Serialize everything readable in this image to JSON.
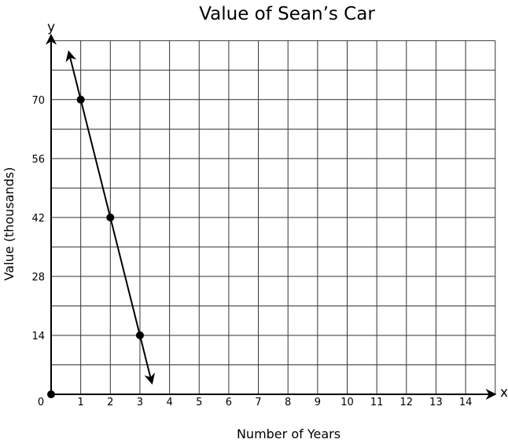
{
  "chart_data": {
    "type": "line",
    "title": "Value of Sean’s Car",
    "xlabel": "Number of Years",
    "ylabel": "Value (thousands)",
    "x_axis_letter": "x",
    "y_axis_letter": "y",
    "origin_label": "0",
    "x_ticks": [
      1,
      2,
      3,
      4,
      5,
      6,
      7,
      8,
      9,
      10,
      11,
      12,
      13,
      14
    ],
    "y_ticks": [
      14,
      28,
      42,
      56,
      70
    ],
    "xlim": [
      0,
      15
    ],
    "ylim": [
      0,
      84
    ],
    "grid": true,
    "grid_step_x": 1,
    "grid_step_y": 7,
    "points": [
      {
        "x": 0,
        "y": 0
      },
      {
        "x": 1,
        "y": 70
      },
      {
        "x": 2,
        "y": 42
      },
      {
        "x": 3,
        "y": 14
      }
    ],
    "line": {
      "from": {
        "x": 0.6,
        "y": 81.2
      },
      "to": {
        "x": 3.4,
        "y": 2.8
      },
      "arrows": "both"
    }
  }
}
